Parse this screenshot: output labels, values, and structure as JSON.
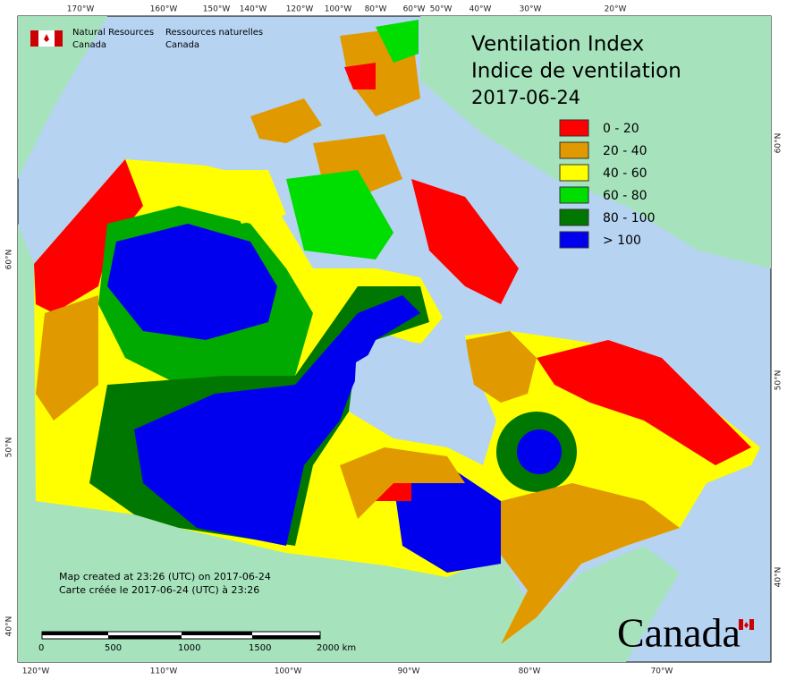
{
  "header": {
    "agency_en": "Natural Resources",
    "agency_en_2": "Canada",
    "agency_fr": "Ressources naturelles",
    "agency_fr_2": "Canada"
  },
  "title": {
    "en": "Ventilation Index",
    "fr": "Indice de ventilation",
    "date": "2017-06-24"
  },
  "legend": [
    {
      "label": "0 - 20",
      "color": "#ff0000"
    },
    {
      "label": "20 - 40",
      "color": "#e09a00"
    },
    {
      "label": "40 - 60",
      "color": "#ffff00"
    },
    {
      "label": "60 - 80",
      "color": "#00dd00"
    },
    {
      "label": "80 - 100",
      "color": "#007700"
    },
    {
      "label": "> 100",
      "color": "#0000ee"
    }
  ],
  "credits": [
    "Map created at 23:26 (UTC) on 2017-06-24",
    "Carte créée le 2017-06-24 (UTC) à 23:26"
  ],
  "scale_bar": [
    "0",
    "500",
    "1000",
    "1500",
    "2000  km"
  ],
  "longitude_top": [
    "170°W",
    "160°W",
    "150°W",
    "140°W",
    "120°W",
    "100°W",
    "80°W",
    "60°W",
    "50°W",
    "40°W",
    "30°W",
    "20°W"
  ],
  "longitude_bottom": [
    "120°W",
    "110°W",
    "100°W",
    "90°W",
    "80°W",
    "70°W"
  ],
  "latitude_left": [
    "60°N",
    "50°N",
    "40°N"
  ],
  "latitude_right": [
    "60°N",
    "50°N",
    "40°N"
  ],
  "wordmark": "Canada"
}
